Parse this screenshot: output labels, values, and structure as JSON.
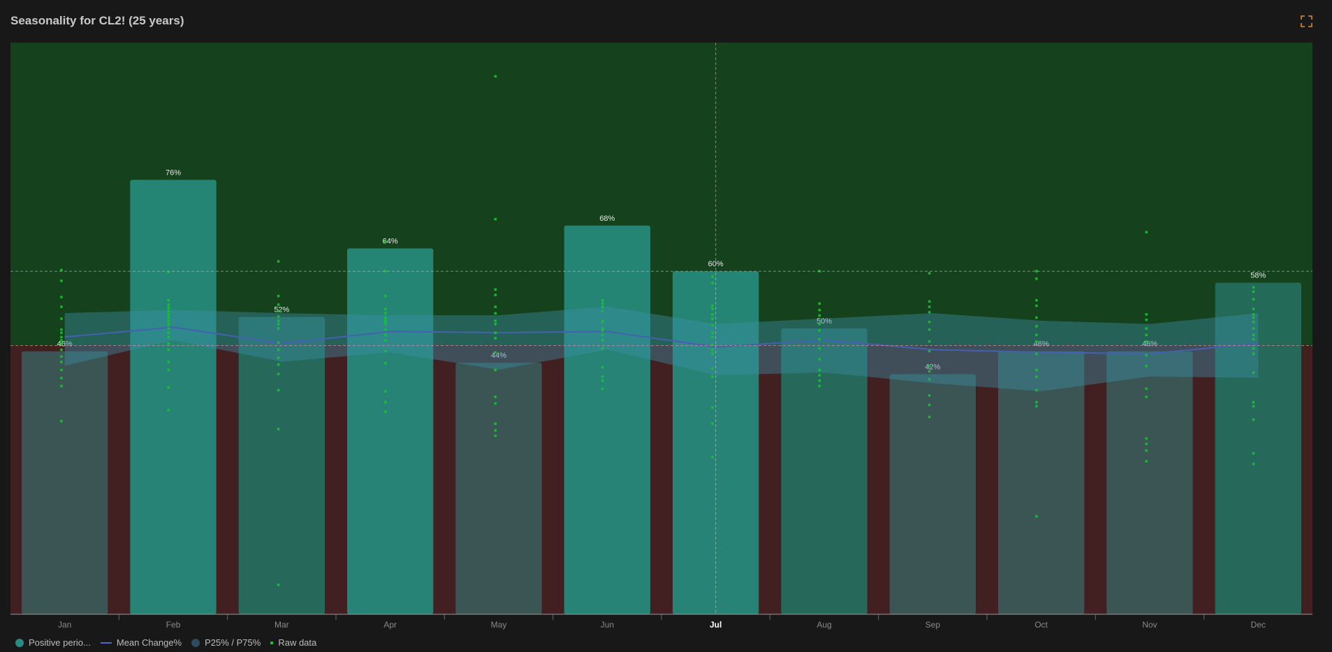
{
  "title": "Seasonality for CL2! (25 years)",
  "expand_icon": "expand-icon",
  "colors": {
    "positive_bg": "#16411d",
    "negative_bg": "#421f21",
    "bar_positive": "#25897a",
    "bar_neutral": "#256d5d",
    "bar_lower": "#3a5957",
    "mean_line": "#4660b0",
    "band": "#3b8fa8",
    "raw": "#19c233",
    "accent": "#e08a2e"
  },
  "legend": [
    {
      "label": "Positive perio...",
      "kind": "dot",
      "color": "#2a8a80"
    },
    {
      "label": "Mean Change%",
      "kind": "line",
      "color": "#5566c9"
    },
    {
      "label": "P25% / P75%",
      "kind": "dot",
      "color": "#2e4a5c"
    },
    {
      "label": "Raw data",
      "kind": "square",
      "color": "#19c233"
    }
  ],
  "chart_data": {
    "type": "bar",
    "title": "Seasonality for CL2! (25 years)",
    "categories": [
      "Jan",
      "Feb",
      "Mar",
      "Apr",
      "May",
      "Jun",
      "Jul",
      "Aug",
      "Sep",
      "Oct",
      "Nov",
      "Dec"
    ],
    "highlighted_category": "Jul",
    "series": [
      {
        "name": "Positive perio...",
        "values": [
          46,
          76,
          52,
          64,
          44,
          68,
          60,
          50,
          42,
          46,
          46,
          58
        ],
        "labels": [
          "46%",
          "76%",
          "52%",
          "64%",
          "44%",
          "68%",
          "60%",
          "50%",
          "42%",
          "46%",
          "46%",
          "58%"
        ]
      },
      {
        "name": "Mean Change%",
        "values": [
          0.8,
          1.7,
          0.2,
          1.3,
          1.2,
          1.3,
          -0.1,
          0.5,
          -0.3,
          -0.5,
          -0.6,
          0.2
        ]
      },
      {
        "name": "P25% / P75%",
        "p25": [
          -1.5,
          0.5,
          -1.2,
          -0.5,
          -1.8,
          -0.3,
          -2.2,
          -2.0,
          -2.8,
          -3.4,
          -2.3,
          -2.4
        ],
        "p75": [
          3.0,
          3.3,
          3.0,
          2.8,
          2.8,
          3.6,
          2.0,
          2.5,
          3.0,
          2.3,
          2.0,
          3.0
        ]
      },
      {
        "name": "Raw data",
        "points": [
          [
            7.0,
            6.0,
            4.5,
            3.6,
            2.5,
            1.5,
            1.2,
            0.8,
            0.5,
            0.2,
            -0.3,
            -0.8,
            -1.2,
            -1.8,
            -2.4,
            -3.0,
            -5.6
          ],
          [
            6.8,
            4.2,
            3.8,
            3.5,
            3.2,
            2.9,
            2.6,
            2.3,
            2.0,
            1.6,
            1.2,
            0.8,
            0.2,
            -0.3,
            -1.2,
            -1.8,
            -3.1,
            -4.8
          ],
          [
            7.8,
            4.6,
            3.8,
            3.2,
            2.7,
            2.3,
            2.0,
            1.6,
            0.3,
            -0.3,
            -0.9,
            -1.4,
            -2.1,
            -3.3,
            -6.2,
            -17.8
          ],
          [
            9.6,
            6.9,
            4.6,
            3.4,
            3.0,
            2.6,
            2.4,
            2.2,
            2.0,
            1.5,
            1.0,
            0.5,
            -0.4,
            -1.3,
            -3.4,
            -4.2,
            -4.9
          ],
          [
            24.9,
            11.7,
            5.2,
            4.7,
            3.6,
            3.0,
            2.3,
            2.0,
            1.2,
            0.7,
            -0.5,
            -1.8,
            -3.8,
            -4.3,
            -5.8,
            -6.3,
            -6.7
          ],
          [
            4.2,
            3.9,
            3.6,
            3.2,
            2.3,
            2.2,
            1.6,
            1.4,
            1.0,
            0.5,
            -0.2,
            -1.6,
            -2.3,
            -2.6,
            -3.2
          ],
          [
            6.4,
            5.8,
            3.7,
            3.4,
            2.9,
            2.5,
            1.9,
            1.2,
            0.8,
            0.1,
            -0.3,
            -0.6,
            -1.7,
            -2.3,
            -4.6,
            -5.8,
            -8.3
          ],
          [
            6.9,
            3.9,
            3.3,
            2.8,
            2.0,
            1.4,
            0.6,
            -0.2,
            -1.0,
            -1.8,
            -2.2,
            -2.6,
            -3.0
          ],
          [
            6.7,
            4.1,
            3.6,
            3.1,
            2.2,
            1.5,
            0.4,
            -0.4,
            -1.5,
            -1.9,
            -2.5,
            -3.7,
            -4.4,
            -5.3
          ],
          [
            6.9,
            6.2,
            4.2,
            3.7,
            2.6,
            1.8,
            1.0,
            0.4,
            -0.6,
            -1.8,
            -2.3,
            -3.3,
            -4.2,
            -4.5,
            -12.7
          ],
          [
            10.5,
            2.9,
            2.4,
            1.6,
            1.0,
            0.4,
            -0.7,
            -1.5,
            -3.2,
            -3.8,
            -6.9,
            -7.3,
            -7.8,
            -8.6
          ],
          [
            5.4,
            5.0,
            4.3,
            3.4,
            2.9,
            2.6,
            2.2,
            1.6,
            1.0,
            0.6,
            -0.2,
            -0.6,
            -2.0,
            -4.2,
            -4.5,
            -5.5,
            -8.0,
            -8.8
          ]
        ]
      }
    ],
    "bar_axis": {
      "min": 0,
      "max": 100
    },
    "value_axis": {
      "min": -20,
      "max": 28,
      "reference_lines": [
        60,
        0
      ]
    },
    "grid": false,
    "legend_position": "bottom-left"
  }
}
